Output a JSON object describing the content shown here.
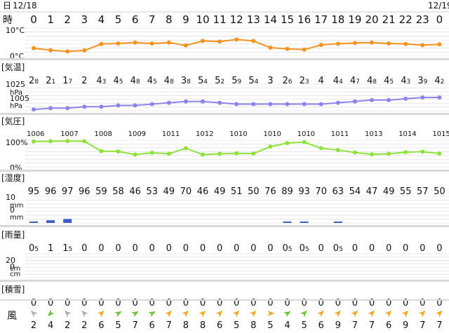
{
  "header": {
    "day_label": "日",
    "hour_label": "時",
    "date_start": "12/18",
    "date_end": "12/19"
  },
  "hours": [
    "0",
    "1",
    "2",
    "3",
    "4",
    "5",
    "6",
    "7",
    "8",
    "9",
    "10",
    "11",
    "12",
    "13",
    "14",
    "15",
    "16",
    "17",
    "18",
    "19",
    "20",
    "21",
    "22",
    "23",
    "0"
  ],
  "colors": {
    "temp": "#f5921e",
    "pressure": "#8c84e8",
    "humidity": "#8ee33a",
    "precip": "#3b5bc9",
    "grid": "#d8d8d8",
    "gray_wind": "#b0b0b0",
    "green_wind": "#6cc63a",
    "orange_wind": "#f5a81e"
  },
  "chart_data": [
    {
      "type": "line",
      "name_label": "[気温]",
      "ylabel_top": "10°C",
      "ylabel_bottom": "0°C",
      "ylim": [
        0,
        10
      ],
      "x": [
        0,
        1,
        2,
        3,
        4,
        5,
        6,
        7,
        8,
        9,
        10,
        11,
        12,
        13,
        14,
        15,
        16,
        17,
        18,
        19,
        20,
        21,
        22,
        23,
        24
      ],
      "values": [
        2.8,
        2.1,
        1.7,
        2,
        4.3,
        4.5,
        4.8,
        4.5,
        4.8,
        3.8,
        5.4,
        5.2,
        5.9,
        5.4,
        3,
        2.6,
        2.3,
        4,
        4.4,
        4.7,
        4.8,
        4.5,
        4.3,
        3.9,
        4.2
      ],
      "labels": [
        {
          "i": "2",
          "d": "8"
        },
        {
          "i": "2",
          "d": "1"
        },
        {
          "i": "1",
          "d": "7"
        },
        {
          "i": "2",
          "d": ""
        },
        {
          "i": "4",
          "d": "3"
        },
        {
          "i": "4",
          "d": "5"
        },
        {
          "i": "4",
          "d": "8"
        },
        {
          "i": "4",
          "d": "5"
        },
        {
          "i": "4",
          "d": "8"
        },
        {
          "i": "3",
          "d": "8"
        },
        {
          "i": "5",
          "d": "4"
        },
        {
          "i": "5",
          "d": "2"
        },
        {
          "i": "5",
          "d": "9"
        },
        {
          "i": "5",
          "d": "4"
        },
        {
          "i": "3",
          "d": ""
        },
        {
          "i": "2",
          "d": "6"
        },
        {
          "i": "2",
          "d": "3"
        },
        {
          "i": "4",
          "d": ""
        },
        {
          "i": "4",
          "d": "4"
        },
        {
          "i": "4",
          "d": "7"
        },
        {
          "i": "4",
          "d": "8"
        },
        {
          "i": "4",
          "d": "5"
        },
        {
          "i": "4",
          "d": "3"
        },
        {
          "i": "3",
          "d": "9"
        },
        {
          "i": "4",
          "d": "2"
        }
      ]
    },
    {
      "type": "line",
      "name_label": "[気圧]",
      "ylabel_top": "1025",
      "ylabel_top_unit": "hPa",
      "ylabel_bottom": "1005",
      "ylabel_bottom_unit": "hPa",
      "ylim": [
        1005,
        1025
      ],
      "x": [
        0,
        1,
        2,
        3,
        4,
        5,
        6,
        7,
        8,
        9,
        10,
        11,
        12,
        13,
        14,
        15,
        16,
        17,
        18,
        19,
        20,
        21,
        22,
        23,
        24
      ],
      "values": [
        1006,
        1007,
        1007,
        1008,
        1008,
        1009,
        1009,
        1010,
        1011,
        1012,
        1012,
        1011,
        1010,
        1010,
        1010,
        1010,
        1010,
        1010,
        1011,
        1012,
        1013,
        1013,
        1014,
        1015,
        1015
      ],
      "labels": [
        "1006",
        "1007",
        "1008",
        "1009",
        "1011",
        "1012",
        "1010",
        "1010",
        "1010",
        "1011",
        "1013",
        "1014",
        "1015"
      ]
    },
    {
      "type": "line",
      "name_label": "[湿度]",
      "ylabel_top": "100%",
      "ylabel_bottom": "0%",
      "ylim": [
        0,
        100
      ],
      "x": [
        0,
        1,
        2,
        3,
        4,
        5,
        6,
        7,
        8,
        9,
        10,
        11,
        12,
        13,
        14,
        15,
        16,
        17,
        18,
        19,
        20,
        21,
        22,
        23,
        24
      ],
      "values": [
        95,
        96,
        97,
        96,
        59,
        58,
        46,
        53,
        49,
        70,
        46,
        49,
        51,
        50,
        76,
        89,
        93,
        70,
        63,
        54,
        47,
        49,
        55,
        57,
        50
      ],
      "labels": [
        "95",
        "96",
        "97",
        "96",
        "59",
        "58",
        "46",
        "53",
        "49",
        "70",
        "46",
        "49",
        "51",
        "50",
        "76",
        "89",
        "93",
        "70",
        "63",
        "54",
        "47",
        "49",
        "55",
        "57",
        "50"
      ]
    },
    {
      "type": "bar",
      "name_label": "[雨量]",
      "ylabel_top": "10",
      "ylabel_top_unit": "mm",
      "ylabel_bottom": "0",
      "ylabel_bottom_unit": "mm",
      "ylim": [
        0,
        10
      ],
      "x": [
        0,
        1,
        2,
        3,
        4,
        5,
        6,
        7,
        8,
        9,
        10,
        11,
        12,
        13,
        14,
        15,
        16,
        17,
        18,
        19,
        20,
        21,
        22,
        23,
        24
      ],
      "values": [
        0.5,
        1,
        1.5,
        0,
        0,
        0,
        0,
        0,
        0,
        0,
        0,
        0,
        0,
        0,
        0,
        0.5,
        0.5,
        0,
        0.5,
        0,
        0,
        0,
        0,
        0,
        0
      ],
      "labels": [
        {
          "i": "0",
          "d": "5"
        },
        {
          "i": "1",
          "d": ""
        },
        {
          "i": "1",
          "d": "5"
        },
        {
          "i": "0",
          "d": ""
        },
        {
          "i": "0",
          "d": ""
        },
        {
          "i": "0",
          "d": ""
        },
        {
          "i": "0",
          "d": ""
        },
        {
          "i": "0",
          "d": ""
        },
        {
          "i": "0",
          "d": ""
        },
        {
          "i": "0",
          "d": ""
        },
        {
          "i": "0",
          "d": ""
        },
        {
          "i": "0",
          "d": ""
        },
        {
          "i": "0",
          "d": ""
        },
        {
          "i": "0",
          "d": ""
        },
        {
          "i": "0",
          "d": ""
        },
        {
          "i": "0",
          "d": "5"
        },
        {
          "i": "0",
          "d": "5"
        },
        {
          "i": "0",
          "d": ""
        },
        {
          "i": "0",
          "d": "5"
        },
        {
          "i": "0",
          "d": ""
        },
        {
          "i": "0",
          "d": ""
        },
        {
          "i": "0",
          "d": ""
        },
        {
          "i": "0",
          "d": ""
        },
        {
          "i": "0",
          "d": ""
        },
        {
          "i": "0",
          "d": ""
        }
      ]
    },
    {
      "type": "bar",
      "name_label": "[積雪]",
      "ylabel_top": "20",
      "ylabel_top_unit": "cm",
      "ylabel_bottom": "0",
      "ylabel_bottom_unit": "cm",
      "ylim": [
        0,
        20
      ],
      "x": [
        0,
        1,
        2,
        3,
        4,
        5,
        6,
        7,
        8,
        9,
        10,
        11,
        12,
        13,
        14,
        15,
        16,
        17,
        18,
        19,
        20,
        21,
        22,
        23,
        24
      ],
      "values": [
        0,
        0,
        0,
        0,
        0,
        0,
        0,
        0,
        0,
        0,
        0,
        0,
        0,
        0,
        0,
        0,
        0,
        0,
        0,
        0,
        0,
        0,
        0,
        0,
        0
      ],
      "labels": [
        "0",
        "0",
        "0",
        "0",
        "0",
        "0",
        "0",
        "0",
        "0",
        "0",
        "0",
        "0",
        "0",
        "0",
        "0",
        "0",
        "0",
        "0",
        "0",
        "0",
        "0",
        "0",
        "0",
        "0",
        "0"
      ]
    }
  ],
  "wind": {
    "label": "風",
    "speeds": [
      "2",
      "4",
      "2",
      "2",
      "6",
      "5",
      "7",
      "6",
      "7",
      "8",
      "8",
      "6",
      "5",
      "8",
      "5",
      "4",
      "5",
      "6",
      "9",
      "7",
      "7",
      "6",
      "9",
      "7",
      "7"
    ],
    "directions": [
      315,
      225,
      315,
      315,
      45,
      60,
      60,
      60,
      45,
      45,
      45,
      45,
      45,
      45,
      90,
      60,
      45,
      45,
      45,
      45,
      45,
      45,
      45,
      45,
      45
    ],
    "colors": [
      "gray",
      "green",
      "gray",
      "gray",
      "orange",
      "green",
      "green",
      "green",
      "orange",
      "orange",
      "orange",
      "orange",
      "orange",
      "orange",
      "orange",
      "green",
      "green",
      "orange",
      "orange",
      "orange",
      "orange",
      "orange",
      "orange",
      "orange",
      "orange"
    ]
  }
}
